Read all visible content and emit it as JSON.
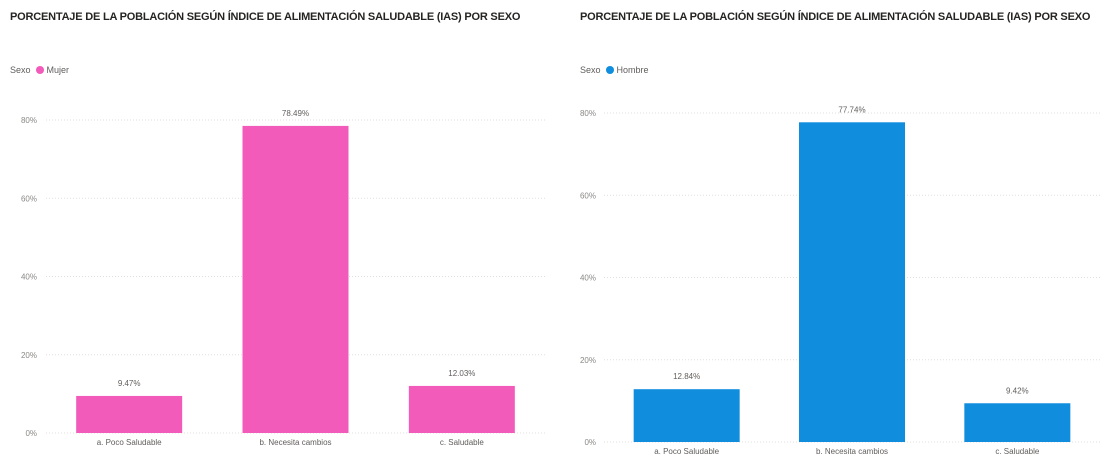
{
  "charts": [
    {
      "title": "PORCENTAJE DE LA POBLACIÓN SEGÚN ÍNDICE DE ALIMENTACIÓN SALUDABLE (IAS) POR SEXO",
      "legend_label": "Sexo",
      "series_name": "Mujer",
      "color": "#f35bbb"
    },
    {
      "title": "PORCENTAJE DE LA POBLACIÓN SEGÚN ÍNDICE DE ALIMENTACIÓN SALUDABLE (IAS) POR SEXO",
      "legend_label": "Sexo",
      "series_name": "Hombre",
      "color": "#118dde"
    }
  ],
  "chart_data": [
    {
      "type": "bar",
      "title": "PORCENTAJE DE LA POBLACIÓN SEGÚN ÍNDICE DE ALIMENTACIÓN SALUDABLE (IAS) POR SEXO",
      "categories": [
        "a. Poco Saludable",
        "b. Necesita cambios",
        "c. Saludable"
      ],
      "series": [
        {
          "name": "Mujer",
          "values": [
            9.47,
            78.49,
            12.03
          ]
        }
      ],
      "data_labels": [
        "9.47%",
        "78.49%",
        "12.03%"
      ],
      "yticks": [
        0,
        20,
        40,
        60,
        80
      ],
      "ytick_labels": [
        "0%",
        "20%",
        "40%",
        "60%",
        "80%"
      ],
      "ylim": [
        0,
        80
      ],
      "legend": "top-left",
      "grid": true
    },
    {
      "type": "bar",
      "title": "PORCENTAJE DE LA POBLACIÓN SEGÚN ÍNDICE DE ALIMENTACIÓN SALUDABLE (IAS) POR SEXO",
      "categories": [
        "a. Poco Saludable",
        "b. Necesita cambios",
        "c. Saludable"
      ],
      "series": [
        {
          "name": "Hombre",
          "values": [
            12.84,
            77.74,
            9.42
          ]
        }
      ],
      "data_labels": [
        "12.84%",
        "77.74%",
        "9.42%"
      ],
      "yticks": [
        0,
        20,
        40,
        60,
        80
      ],
      "ytick_labels": [
        "0%",
        "20%",
        "40%",
        "60%",
        "80%"
      ],
      "ylim": [
        0,
        80
      ],
      "legend": "top-left",
      "grid": true
    }
  ]
}
